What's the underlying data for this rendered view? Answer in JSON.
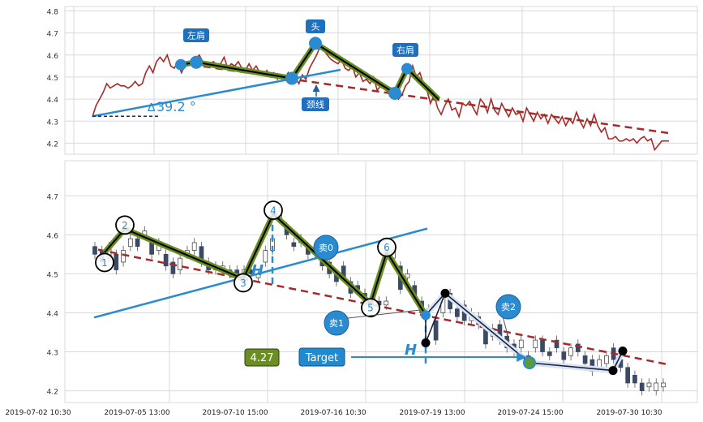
{
  "colors": {
    "price_line": "#a52a2a",
    "neckline": "#2a8bd0",
    "trend_dash": "#a52a2a",
    "pattern_outer": "#6b8e23",
    "pattern_inner": "#000000",
    "marker_blue": "#2a8bd0",
    "badge_bg": "#1f6fbf",
    "badge_green": "#6b8e23",
    "grid": "#d9d9d9",
    "candle_dark": "#3a4a66",
    "candle_light": "#ffffff"
  },
  "chart_data": [
    {
      "type": "line",
      "panel": "top",
      "ylim": [
        4.15,
        4.82
      ],
      "y_ticks": [
        "4.8",
        "4.7",
        "4.6",
        "4.5",
        "4.4",
        "4.3",
        "4.2"
      ],
      "grid": true,
      "price": [
        4.32,
        4.37,
        4.4,
        4.43,
        4.47,
        4.45,
        4.46,
        4.47,
        4.46,
        4.46,
        4.45,
        4.46,
        4.48,
        4.46,
        4.47,
        4.52,
        4.55,
        4.52,
        4.57,
        4.59,
        4.57,
        4.6,
        4.55,
        4.54,
        4.57,
        4.52,
        4.55,
        4.57,
        4.56,
        4.58,
        4.6,
        4.57,
        4.55,
        4.56,
        4.57,
        4.55,
        4.56,
        4.59,
        4.54,
        4.56,
        4.55,
        4.57,
        4.54,
        4.53,
        4.56,
        4.53,
        4.55,
        4.52,
        4.51,
        4.53,
        4.5,
        4.52,
        4.49,
        4.51,
        4.49,
        4.52,
        4.48,
        4.5,
        4.47,
        4.51,
        4.49,
        4.54,
        4.57,
        4.6,
        4.64,
        4.62,
        4.6,
        4.58,
        4.57,
        4.56,
        4.58,
        4.54,
        4.53,
        4.55,
        4.5,
        4.52,
        4.48,
        4.49,
        4.47,
        4.5,
        4.44,
        4.46,
        4.46,
        4.43,
        4.45,
        4.44,
        4.4,
        4.42,
        4.46,
        4.48,
        4.55,
        4.5,
        4.52,
        4.47,
        4.44,
        4.38,
        4.42,
        4.36,
        4.33,
        4.37,
        4.4,
        4.35,
        4.36,
        4.32,
        4.38,
        4.37,
        4.39,
        4.36,
        4.33,
        4.4,
        4.38,
        4.34,
        4.4,
        4.35,
        4.33,
        4.38,
        4.35,
        4.32,
        4.36,
        4.33,
        4.34,
        4.3,
        4.36,
        4.33,
        4.3,
        4.34,
        4.31,
        4.33,
        4.29,
        4.33,
        4.31,
        4.29,
        4.32,
        4.28,
        4.31,
        4.29,
        4.34,
        4.3,
        4.27,
        4.31,
        4.28,
        4.33,
        4.28,
        4.25,
        4.27,
        4.22,
        4.22,
        4.23,
        4.21,
        4.21,
        4.22,
        4.21,
        4.22,
        4.2,
        4.22,
        4.23,
        4.21,
        4.22,
        4.17,
        4.19,
        4.21,
        4.21,
        4.21
      ],
      "head_shoulders": {
        "left_shoulder": 4.567,
        "neck_left": 4.494,
        "head": 4.653,
        "neck_right": 4.426,
        "right_shoulder": 4.538,
        "end": 4.398
      },
      "neckline_angle": "39.2 °",
      "labels": {
        "left_shoulder": "左肩",
        "head": "头",
        "right_shoulder": "右肩",
        "neckline": "颈线"
      }
    },
    {
      "type": "candlestick",
      "panel": "bottom",
      "ylim": [
        4.17,
        4.79
      ],
      "y_ticks": [
        "4.7",
        "4.6",
        "4.5",
        "4.4",
        "4.3",
        "4.2"
      ],
      "x_ticks": [
        "2019-07-02 10:30",
        "2019-07-05 13:00",
        "2019-07-10 15:00",
        "2019-07-16 10:30",
        "2019-07-19 13:00",
        "2019-07-24 15:00",
        "2019-07-30 10:30"
      ],
      "grid": true,
      "candles": [
        [
          4.57,
          4.55
        ],
        [
          4.56,
          4.53
        ],
        [
          4.54,
          4.57
        ],
        [
          4.55,
          4.51
        ],
        [
          4.53,
          4.56
        ],
        [
          4.57,
          4.59
        ],
        [
          4.59,
          4.57
        ],
        [
          4.6,
          4.61
        ],
        [
          4.58,
          4.55
        ],
        [
          4.56,
          4.58
        ],
        [
          4.55,
          4.52
        ],
        [
          4.53,
          4.5
        ],
        [
          4.51,
          4.54
        ],
        [
          4.55,
          4.56
        ],
        [
          4.56,
          4.58
        ],
        [
          4.57,
          4.53
        ],
        [
          4.53,
          4.51
        ],
        [
          4.52,
          4.51
        ],
        [
          4.51,
          4.52
        ],
        [
          4.51,
          4.5
        ],
        [
          4.51,
          4.5
        ],
        [
          4.5,
          4.51
        ],
        [
          4.51,
          4.5
        ],
        [
          4.49,
          4.5
        ],
        [
          4.53,
          4.56
        ],
        [
          4.56,
          4.59
        ],
        [
          4.64,
          4.66
        ],
        [
          4.62,
          4.6
        ],
        [
          4.58,
          4.57
        ],
        [
          4.59,
          4.58
        ],
        [
          4.57,
          4.55
        ],
        [
          4.56,
          4.55
        ],
        [
          4.54,
          4.52
        ],
        [
          4.53,
          4.5
        ],
        [
          4.5,
          4.48
        ],
        [
          4.52,
          4.49
        ],
        [
          4.48,
          4.45
        ],
        [
          4.47,
          4.46
        ],
        [
          4.45,
          4.43
        ],
        [
          4.44,
          4.43
        ],
        [
          4.43,
          4.42
        ],
        [
          4.42,
          4.43
        ],
        [
          4.54,
          4.56
        ],
        [
          4.52,
          4.46
        ],
        [
          4.49,
          4.5
        ],
        [
          4.47,
          4.44
        ],
        [
          4.43,
          4.4
        ],
        [
          4.41,
          4.4
        ],
        [
          4.38,
          4.33
        ],
        [
          4.4,
          4.44
        ],
        [
          4.45,
          4.41
        ],
        [
          4.41,
          4.39
        ],
        [
          4.42,
          4.38
        ],
        [
          4.38,
          4.4
        ],
        [
          4.39,
          4.37
        ],
        [
          4.36,
          4.32
        ],
        [
          4.34,
          4.36
        ],
        [
          4.37,
          4.33
        ],
        [
          4.34,
          4.31
        ],
        [
          4.32,
          4.3
        ],
        [
          4.31,
          4.33
        ],
        [
          4.29,
          4.27
        ],
        [
          4.31,
          4.33
        ],
        [
          4.33,
          4.3
        ],
        [
          4.3,
          4.29
        ],
        [
          4.33,
          4.31
        ],
        [
          4.3,
          4.28
        ],
        [
          4.29,
          4.31
        ],
        [
          4.32,
          4.3
        ],
        [
          4.29,
          4.27
        ],
        [
          4.28,
          4.25
        ],
        [
          4.26,
          4.28
        ],
        [
          4.27,
          4.29
        ],
        [
          4.31,
          4.28
        ],
        [
          4.28,
          4.26
        ],
        [
          4.26,
          4.22
        ],
        [
          4.24,
          4.22
        ],
        [
          4.22,
          4.2
        ],
        [
          4.21,
          4.22
        ],
        [
          4.2,
          4.22
        ],
        [
          4.21,
          4.22
        ]
      ],
      "pattern_points": [
        {
          "label": "1",
          "value": 4.535
        },
        {
          "label": "2",
          "value": 4.615
        },
        {
          "label": "3",
          "value": 4.487
        },
        {
          "label": "4",
          "value": 4.653
        },
        {
          "label": "5",
          "value": 4.423
        },
        {
          "label": "6",
          "value": 4.556
        }
      ],
      "neckline_label": "H",
      "target_label": "Target",
      "target_value": "4.27",
      "sell_labels": [
        "卖0",
        "卖1",
        "卖2"
      ]
    }
  ]
}
